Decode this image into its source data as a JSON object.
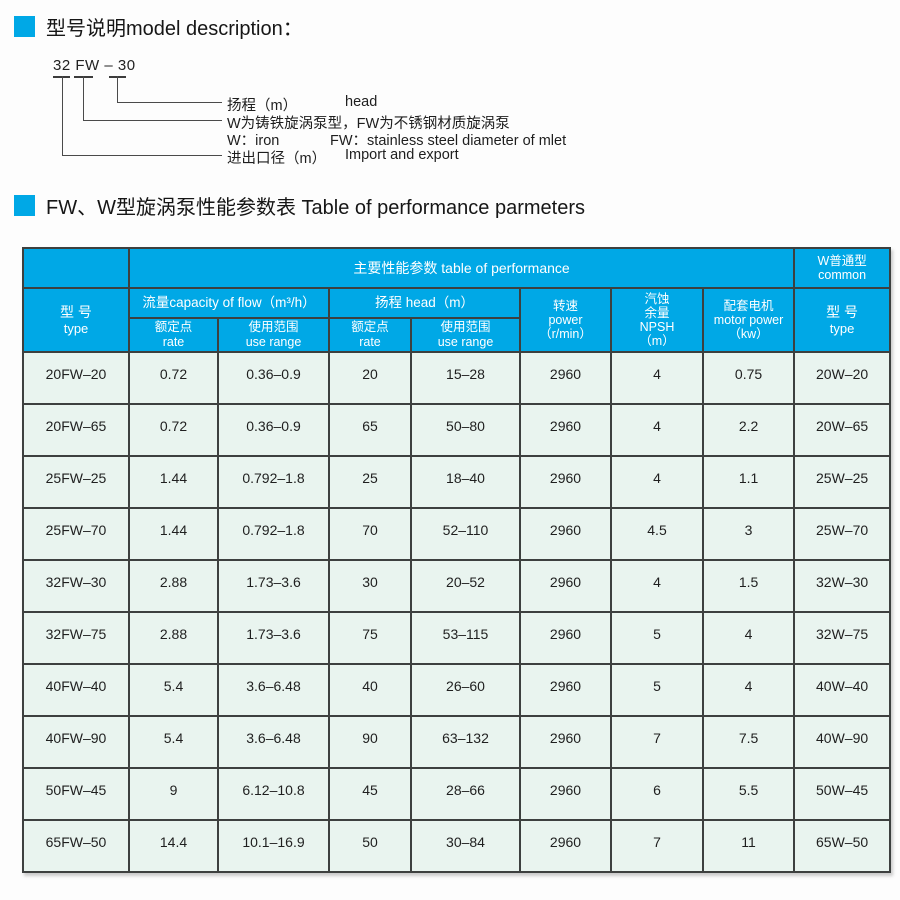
{
  "accent_color": "#00a8e6",
  "table_border_color": "#3d403f",
  "row_bg_color": "#e9f4ef",
  "sections": {
    "model_description_title": "型号说明model description：",
    "performance_table_title": "FW、W型旋涡泵性能参数表 Table of performance parmeters"
  },
  "model_diagram": {
    "code": "32 FW – 30",
    "head_zh": "扬程（m）",
    "head_en": "head",
    "material_zh": "W为铸铁旋涡泵型，FW为不锈钢材质旋涡泵",
    "material_en_w": "W：iron",
    "material_en_fw": "FW：stainless steel diameter of mlet",
    "inlet_zh": "进出口径（m）",
    "inlet_en": "Import and export"
  },
  "table": {
    "header": {
      "main_group": "主要性能参数  table of performance",
      "common_zh": "W普通型",
      "common_en": "common",
      "type_zh": "型  号",
      "type_en": "type",
      "flow_group": "流量capacity of flow（m³/h）",
      "head_group": "扬程 head（m）",
      "rate_zh": "额定点",
      "rate_en": "rate",
      "range_zh": "使用范围",
      "range_en": "use range",
      "speed_zh": "转速",
      "speed_en": "power",
      "speed_unit": "（r/min）",
      "npsh_zh1": "汽蚀",
      "npsh_zh2": "余量",
      "npsh_en": "NPSH",
      "npsh_unit": "（m）",
      "motor_zh": "配套电机",
      "motor_en": "motor power",
      "motor_unit": "（kw）",
      "type2_zh": "型  号",
      "type2_en": "type"
    },
    "rows": [
      [
        "20FW–20",
        "0.72",
        "0.36–0.9",
        "20",
        "15–28",
        "2960",
        "4",
        "0.75",
        "20W–20"
      ],
      [
        "20FW–65",
        "0.72",
        "0.36–0.9",
        "65",
        "50–80",
        "2960",
        "4",
        "2.2",
        "20W–65"
      ],
      [
        "25FW–25",
        "1.44",
        "0.792–1.8",
        "25",
        "18–40",
        "2960",
        "4",
        "1.1",
        "25W–25"
      ],
      [
        "25FW–70",
        "1.44",
        "0.792–1.8",
        "70",
        "52–110",
        "2960",
        "4.5",
        "3",
        "25W–70"
      ],
      [
        "32FW–30",
        "2.88",
        "1.73–3.6",
        "30",
        "20–52",
        "2960",
        "4",
        "1.5",
        "32W–30"
      ],
      [
        "32FW–75",
        "2.88",
        "1.73–3.6",
        "75",
        "53–115",
        "2960",
        "5",
        "4",
        "32W–75"
      ],
      [
        "40FW–40",
        "5.4",
        "3.6–6.48",
        "40",
        "26–60",
        "2960",
        "5",
        "4",
        "40W–40"
      ],
      [
        "40FW–90",
        "5.4",
        "3.6–6.48",
        "90",
        "63–132",
        "2960",
        "7",
        "7.5",
        "40W–90"
      ],
      [
        "50FW–45",
        "9",
        "6.12–10.8",
        "45",
        "28–66",
        "2960",
        "6",
        "5.5",
        "50W–45"
      ],
      [
        "65FW–50",
        "14.4",
        "10.1–16.9",
        "50",
        "30–84",
        "2960",
        "7",
        "11",
        "65W–50"
      ]
    ]
  }
}
